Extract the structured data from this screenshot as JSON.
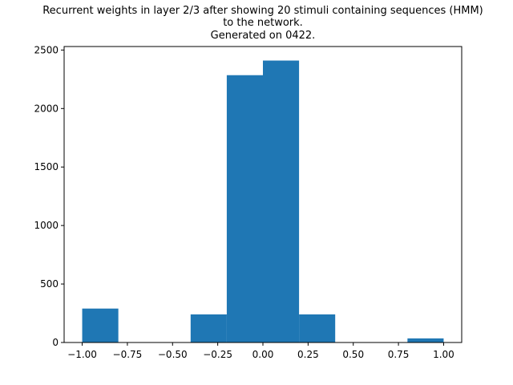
{
  "chart_data": {
    "type": "bar",
    "title_lines": [
      "Recurrent weights in layer 2/3 after showing 20 stimuli containing sequences (HMM)",
      "to the network.",
      "Generated on 0422."
    ],
    "xlabel": "",
    "ylabel": "",
    "bin_edges": [
      -1.0,
      -0.8,
      -0.6,
      -0.4,
      -0.2,
      0.0,
      0.2,
      0.4,
      0.6,
      0.8,
      1.0
    ],
    "counts": [
      290,
      0,
      0,
      240,
      2285,
      2410,
      240,
      0,
      0,
      35
    ],
    "xlim": [
      -1.1,
      1.1
    ],
    "ylim": [
      0,
      2530
    ],
    "xticks": [
      -1.0,
      -0.75,
      -0.5,
      -0.25,
      0.0,
      0.25,
      0.5,
      0.75,
      1.0
    ],
    "xtick_labels": [
      "−1.00",
      "−0.75",
      "−0.50",
      "−0.25",
      "0.00",
      "0.25",
      "0.50",
      "0.75",
      "1.00"
    ],
    "yticks": [
      0,
      500,
      1000,
      1500,
      2000,
      2500
    ],
    "ytick_labels": [
      "0",
      "500",
      "1000",
      "1500",
      "2000",
      "2500"
    ],
    "bar_color": "#1f77b4",
    "grid": false,
    "legend": "none"
  }
}
